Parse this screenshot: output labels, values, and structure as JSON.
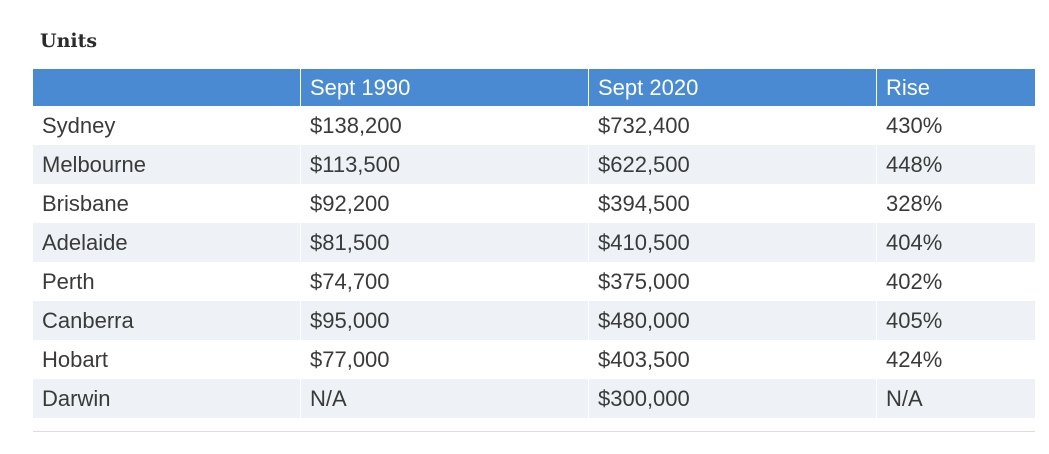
{
  "title": "Units",
  "table": {
    "headers": [
      "",
      "Sept 1990",
      "Sept 2020",
      "Rise"
    ],
    "rows": [
      [
        "Sydney",
        "$138,200",
        "$732,400",
        "430%"
      ],
      [
        "Melbourne",
        "$113,500",
        "$622,500",
        "448%"
      ],
      [
        "Brisbane",
        "$92,200",
        "$394,500",
        "328%"
      ],
      [
        "Adelaide",
        "$81,500",
        "$410,500",
        "404%"
      ],
      [
        "Perth",
        "$74,700",
        "$375,000",
        "402%"
      ],
      [
        "Canberra",
        "$95,000",
        "$480,000",
        "405%"
      ],
      [
        "Hobart",
        "$77,000",
        "$403,500",
        "424%"
      ],
      [
        "Darwin",
        "N/A",
        "$300,000",
        "N/A"
      ]
    ]
  },
  "colors": {
    "header_bg": "#4a8ad2",
    "stripe_bg": "#eef2f6"
  }
}
